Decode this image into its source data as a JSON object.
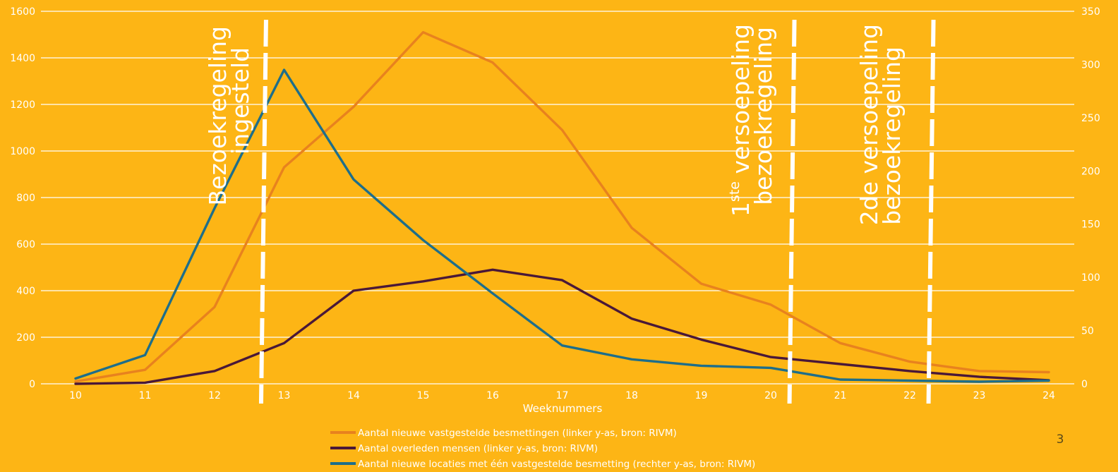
{
  "chart_data": {
    "type": "line",
    "xlabel": "Weeknummers",
    "x": [
      10,
      11,
      12,
      13,
      14,
      15,
      16,
      17,
      18,
      19,
      20,
      21,
      22,
      23,
      24
    ],
    "ylim_left": [
      0,
      1600
    ],
    "yticks_left": [
      "0",
      "200",
      "400",
      "600",
      "800",
      "1000",
      "1200",
      "1400",
      "1600"
    ],
    "ylim_right": [
      0,
      350
    ],
    "yticks_right": [
      "0",
      "50",
      "100",
      "150",
      "200",
      "250",
      "300",
      "350"
    ],
    "grid": true,
    "series": [
      {
        "name": "Aantal nieuwe vastgestelde besmettingen  (linker y-as, bron: RIVM)",
        "axis": "left",
        "color": "#E8821E",
        "values": [
          10,
          60,
          330,
          930,
          1190,
          1510,
          1380,
          1090,
          670,
          430,
          340,
          175,
          95,
          55,
          50
        ]
      },
      {
        "name": "Aantal overleden mensen  (linker y-as, bron: RIVM)",
        "axis": "left",
        "color": "#4A1838",
        "values": [
          0,
          5,
          55,
          175,
          400,
          440,
          490,
          445,
          280,
          190,
          115,
          85,
          55,
          30,
          15
        ]
      },
      {
        "name": "Aantal nieuwe locaties met één vastgestelde besmetting  (rechter y-as, bron: RIVM)",
        "axis": "right",
        "color": "#1E6E8A",
        "values": [
          5,
          27,
          165,
          295,
          192,
          135,
          85,
          36,
          23,
          17,
          15,
          4,
          3,
          2,
          3
        ]
      }
    ],
    "annotations": [
      {
        "lines": [
          "Bezoekregeling",
          "ingesteld"
        ],
        "x": 12.7
      },
      {
        "lines": [
          "1ste versoepeling",
          "bezoekregeling"
        ],
        "x": 20.3
      },
      {
        "lines": [
          "2de versoepeling",
          "bezoekregeling"
        ],
        "x": 22.3
      }
    ]
  },
  "annotation_labels": {
    "a1_line1": "Bezoekregeling",
    "a1_line2": "ingesteld",
    "a2_line1_sup_base": "1",
    "a2_line1_sup": "ste",
    "a2_line1_rest": " versoepeling",
    "a2_line2": "bezoekregeling",
    "a3_line1": "2de versoepeling",
    "a3_line2": "bezoekregeling"
  },
  "page_number": "3",
  "colors": {
    "background": "#FDB515",
    "grid": "#FFFFFF",
    "text": "#FFFFFF"
  }
}
